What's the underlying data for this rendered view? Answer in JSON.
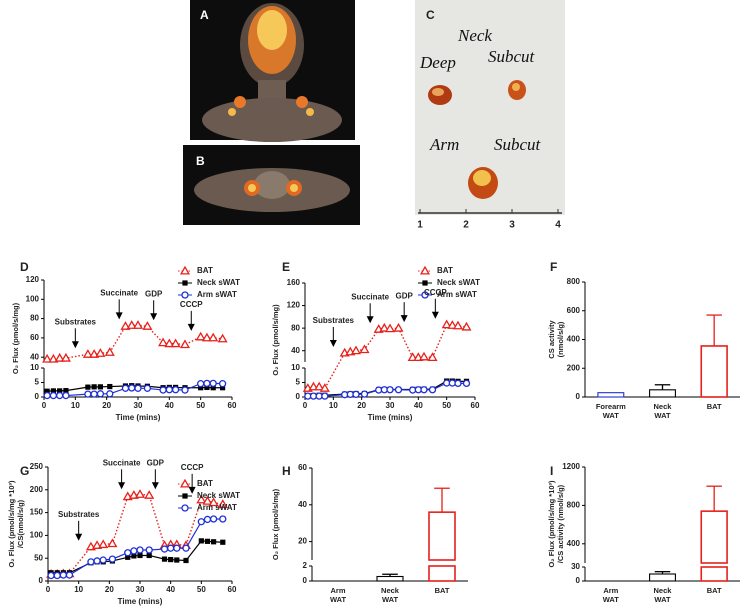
{
  "images": [
    {
      "label": "A"
    },
    {
      "label": "B"
    },
    {
      "label": "C",
      "notes": [
        "Neck",
        "Deep",
        "Subcut",
        "Arm",
        "Subcut"
      ],
      "ruler": [
        1,
        2,
        3,
        4
      ]
    }
  ],
  "chart_data": [
    {
      "type": "line",
      "label": "D",
      "y_label": "O₂ Flux (pmol/s/mg)",
      "x_label": "Time (mins)",
      "xlim": [
        0,
        60
      ],
      "xticks": [
        0,
        10,
        20,
        30,
        40,
        50,
        60
      ],
      "y_segments": [
        {
          "ylim": [
            0,
            10
          ],
          "yticks": [
            0,
            5,
            10
          ]
        },
        {
          "ylim": [
            35,
            120
          ],
          "yticks": [
            40,
            60,
            80,
            100,
            120
          ]
        }
      ],
      "x": [
        1,
        3,
        5,
        7,
        14,
        16,
        18,
        21,
        26,
        28,
        30,
        33,
        38,
        40,
        42,
        45,
        50,
        52,
        54,
        57
      ],
      "series": [
        {
          "name": "BAT",
          "color": "#e8201a",
          "marker": "triangle",
          "line": "dotted",
          "values": [
            38,
            38,
            39,
            39,
            43,
            43,
            44,
            45,
            72,
            73,
            73,
            72,
            55,
            54,
            54,
            53,
            61,
            60,
            60,
            59
          ]
        },
        {
          "name": "Neck sWAT",
          "color": "#000000",
          "marker": "square",
          "line": "solid",
          "values": [
            2,
            2.1,
            2.1,
            2.2,
            3.4,
            3.5,
            3.5,
            3.6,
            3.8,
            3.9,
            3.8,
            3.7,
            3.2,
            3.3,
            3.3,
            3.2,
            3.2,
            3.3,
            3.2,
            3.2
          ]
        },
        {
          "name": "Arm sWAT",
          "color": "#1f2fd6",
          "marker": "circle",
          "line": "solid",
          "values": [
            0.5,
            0.5,
            0.5,
            0.5,
            1,
            1,
            1.1,
            1.1,
            3,
            3.1,
            3,
            3,
            2.4,
            2.5,
            2.5,
            2.4,
            4.6,
            4.7,
            4.7,
            4.6
          ]
        }
      ],
      "annotations": [
        {
          "text": "Substrates",
          "x": 10
        },
        {
          "text": "Succinate",
          "x": 24
        },
        {
          "text": "GDP",
          "x": 35
        },
        {
          "text": "CCCP",
          "x": 47
        }
      ],
      "legend": "upper right"
    },
    {
      "type": "line",
      "label": "E",
      "y_label": "O₂ Flux (pmol/s/mg)",
      "x_label": "Time (mins)",
      "xlim": [
        0,
        60
      ],
      "xticks": [
        0,
        10,
        20,
        30,
        40,
        50,
        60
      ],
      "y_segments": [
        {
          "ylim": [
            0,
            10
          ],
          "yticks": [
            0,
            5,
            10
          ]
        },
        {
          "ylim": [
            20,
            160
          ],
          "yticks": [
            40,
            80,
            120,
            160
          ]
        }
      ],
      "x": [
        1,
        3,
        5,
        7,
        14,
        16,
        18,
        21,
        26,
        28,
        30,
        33,
        38,
        40,
        42,
        45,
        50,
        52,
        54,
        57
      ],
      "series": [
        {
          "name": "BAT",
          "color": "#e8201a",
          "marker": "triangle",
          "line": "dotted",
          "values": [
            3,
            3.5,
            3.5,
            3,
            36,
            38,
            40,
            42,
            78,
            80,
            79,
            80,
            28,
            28,
            29,
            28,
            86,
            85,
            84,
            82
          ]
        },
        {
          "name": "Neck sWAT",
          "color": "#000000",
          "marker": "square",
          "line": "solid",
          "values": [
            0.5,
            0.5,
            0.6,
            0.6,
            1,
            1.1,
            1.2,
            1.2,
            2.5,
            2.6,
            2.6,
            2.6,
            2.6,
            2.7,
            2.7,
            2.7,
            5.5,
            5.5,
            5.4,
            5.4
          ]
        },
        {
          "name": "Arm sWAT",
          "color": "#1f2fd6",
          "marker": "circle",
          "line": "solid",
          "values": [
            0.3,
            0.3,
            0.3,
            0.3,
            0.8,
            0.9,
            0.9,
            1,
            2.4,
            2.5,
            2.5,
            2.5,
            2.4,
            2.5,
            2.5,
            2.5,
            4.8,
            4.8,
            4.7,
            4.7
          ]
        }
      ],
      "annotations": [
        {
          "text": "Substrates",
          "x": 10
        },
        {
          "text": "Succinate",
          "x": 23
        },
        {
          "text": "GDP",
          "x": 35
        },
        {
          "text": "CCCP",
          "x": 46
        }
      ],
      "legend": "upper right"
    },
    {
      "type": "bar",
      "label": "F",
      "y_label": "CS activity\n(nmol/s/g)",
      "ylim": [
        0,
        800
      ],
      "yticks": [
        0,
        200,
        400,
        600,
        800
      ],
      "categories": [
        "Forearm\nWAT",
        "Neck\nWAT",
        "BAT"
      ],
      "values": [
        30,
        50,
        355
      ],
      "errors": [
        0,
        35,
        215
      ],
      "colors": [
        "#1f2fd6",
        "#000000",
        "#e8201a"
      ]
    },
    {
      "type": "line",
      "label": "G",
      "y_label": "O₂ Flux (pmol/s/mg *10³)\n/CS(nmol/s/g)",
      "x_label": "Time (mins)",
      "xlim": [
        0,
        60
      ],
      "xticks": [
        0,
        10,
        20,
        30,
        40,
        50,
        60
      ],
      "ylim": [
        0,
        250
      ],
      "yticks": [
        0,
        50,
        100,
        150,
        200,
        250
      ],
      "x": [
        1,
        3,
        5,
        7,
        14,
        16,
        18,
        21,
        26,
        28,
        30,
        33,
        38,
        40,
        42,
        45,
        50,
        52,
        54,
        57
      ],
      "series": [
        {
          "name": "BAT",
          "color": "#e8201a",
          "marker": "triangle",
          "line": "dotted",
          "values": [
            15,
            15,
            16,
            16,
            75,
            78,
            80,
            82,
            185,
            188,
            190,
            188,
            78,
            80,
            80,
            78,
            178,
            175,
            172,
            168
          ]
        },
        {
          "name": "Neck sWAT",
          "color": "#000000",
          "marker": "square",
          "line": "solid",
          "values": [
            18,
            18,
            18,
            18,
            40,
            42,
            42,
            44,
            52,
            55,
            56,
            56,
            48,
            47,
            46,
            45,
            88,
            87,
            86,
            85
          ]
        },
        {
          "name": "Arm sWAT",
          "color": "#1f2fd6",
          "marker": "circle",
          "line": "solid",
          "values": [
            12,
            12,
            13,
            13,
            42,
            44,
            46,
            48,
            62,
            66,
            68,
            68,
            70,
            72,
            72,
            72,
            130,
            135,
            136,
            136
          ]
        }
      ],
      "annotations": [
        {
          "text": "Substrates",
          "x": 10
        },
        {
          "text": "Succinate",
          "x": 24
        },
        {
          "text": "GDP",
          "x": 35
        },
        {
          "text": "CCCP",
          "x": 47
        }
      ],
      "legend": "upper right"
    },
    {
      "type": "bar",
      "label": "H",
      "y_label": "O₂ Flux (pmol/s/mg)",
      "y_segments": [
        {
          "ylim": [
            0,
            2
          ],
          "yticks": [
            0,
            2
          ]
        },
        {
          "ylim": [
            10,
            60
          ],
          "yticks": [
            20,
            40,
            60
          ]
        }
      ],
      "categories": [
        "Arm\nWAT",
        "Neck\nWAT",
        "BAT"
      ],
      "values": [
        0,
        0.6,
        36
      ],
      "errors": [
        0,
        0.3,
        13
      ],
      "colors": [
        "#000000",
        "#000000",
        "#e8201a"
      ]
    },
    {
      "type": "bar",
      "label": "I",
      "y_label": "O₂ Flux (pmol/s/mg *10³)\n/CS activity (nmol/s/g)",
      "y_segments": [
        {
          "ylim": [
            0,
            30
          ],
          "yticks": [
            0,
            30
          ]
        },
        {
          "ylim": [
            200,
            1200
          ],
          "yticks": [
            400,
            800,
            1200
          ]
        }
      ],
      "categories": [
        "Arm\nWAT",
        "Neck\nWAT",
        "BAT"
      ],
      "values": [
        0,
        15,
        740
      ],
      "errors": [
        0,
        5,
        260
      ],
      "colors": [
        "#000000",
        "#000000",
        "#e8201a"
      ]
    }
  ]
}
